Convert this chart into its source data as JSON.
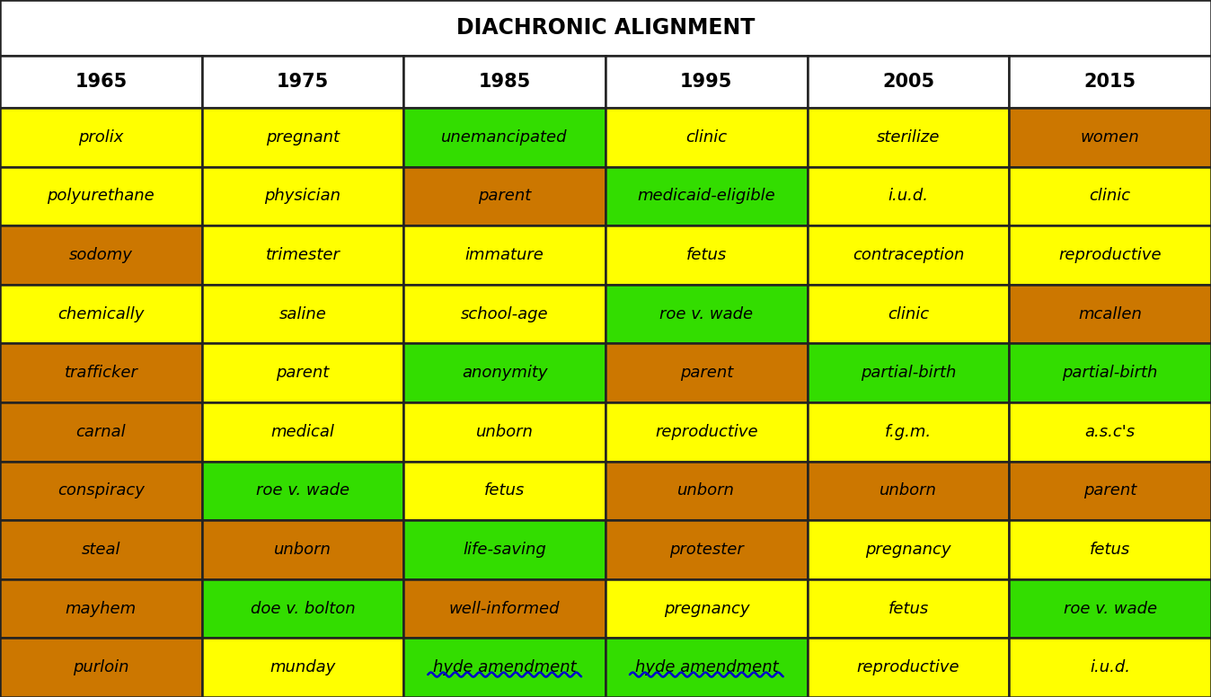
{
  "title": "DIACHRONIC ALIGNMENT",
  "headers": [
    "1965",
    "1975",
    "1985",
    "1995",
    "2005",
    "2015"
  ],
  "rows": [
    [
      "prolix",
      "pregnant",
      "unemancipated",
      "clinic",
      "sterilize",
      "women"
    ],
    [
      "polyurethane",
      "physician",
      "parent",
      "medicaid-eligible",
      "i.u.d.",
      "clinic"
    ],
    [
      "sodomy",
      "trimester",
      "immature",
      "fetus",
      "contraception",
      "reproductive"
    ],
    [
      "chemically",
      "saline",
      "school-age",
      "roe v. wade",
      "clinic",
      "mcallen"
    ],
    [
      "trafficker",
      "parent",
      "anonymity",
      "parent",
      "partial-birth",
      "partial-birth"
    ],
    [
      "carnal",
      "medical",
      "unborn",
      "reproductive",
      "f.g.m.",
      "a.s.c's"
    ],
    [
      "conspiracy",
      "roe v. wade",
      "fetus",
      "unborn",
      "unborn",
      "parent"
    ],
    [
      "steal",
      "unborn",
      "life-saving",
      "protester",
      "pregnancy",
      "fetus"
    ],
    [
      "mayhem",
      "doe v. bolton",
      "well-informed",
      "pregnancy",
      "fetus",
      "roe v. wade"
    ],
    [
      "purloin",
      "munday",
      "hyde amendment",
      "hyde amendment",
      "reproductive",
      "i.u.d."
    ]
  ],
  "colors": [
    [
      "#ffff00",
      "#ffff00",
      "#33dd00",
      "#ffff00",
      "#ffff00",
      "#cc7700"
    ],
    [
      "#ffff00",
      "#ffff00",
      "#cc7700",
      "#33dd00",
      "#ffff00",
      "#ffff00"
    ],
    [
      "#cc7700",
      "#ffff00",
      "#ffff00",
      "#ffff00",
      "#ffff00",
      "#ffff00"
    ],
    [
      "#ffff00",
      "#ffff00",
      "#ffff00",
      "#33dd00",
      "#ffff00",
      "#cc7700"
    ],
    [
      "#cc7700",
      "#ffff00",
      "#33dd00",
      "#cc7700",
      "#33dd00",
      "#33dd00"
    ],
    [
      "#cc7700",
      "#ffff00",
      "#ffff00",
      "#ffff00",
      "#ffff00",
      "#ffff00"
    ],
    [
      "#cc7700",
      "#33dd00",
      "#ffff00",
      "#cc7700",
      "#cc7700",
      "#cc7700"
    ],
    [
      "#cc7700",
      "#cc7700",
      "#33dd00",
      "#cc7700",
      "#ffff00",
      "#ffff00"
    ],
    [
      "#cc7700",
      "#33dd00",
      "#cc7700",
      "#ffff00",
      "#ffff00",
      "#33dd00"
    ],
    [
      "#cc7700",
      "#ffff00",
      "#33dd00",
      "#33dd00",
      "#ffff00",
      "#ffff00"
    ]
  ],
  "underline_cells": [
    [
      9,
      2
    ],
    [
      9,
      3
    ]
  ],
  "title_bg": "#ffffff",
  "header_bg": "#ffffff",
  "border_color": "#222222",
  "text_color": "#000000",
  "title_fontsize": 17,
  "header_fontsize": 15,
  "cell_fontsize": 13,
  "fig_width": 13.48,
  "fig_height": 7.76,
  "dpi": 100
}
